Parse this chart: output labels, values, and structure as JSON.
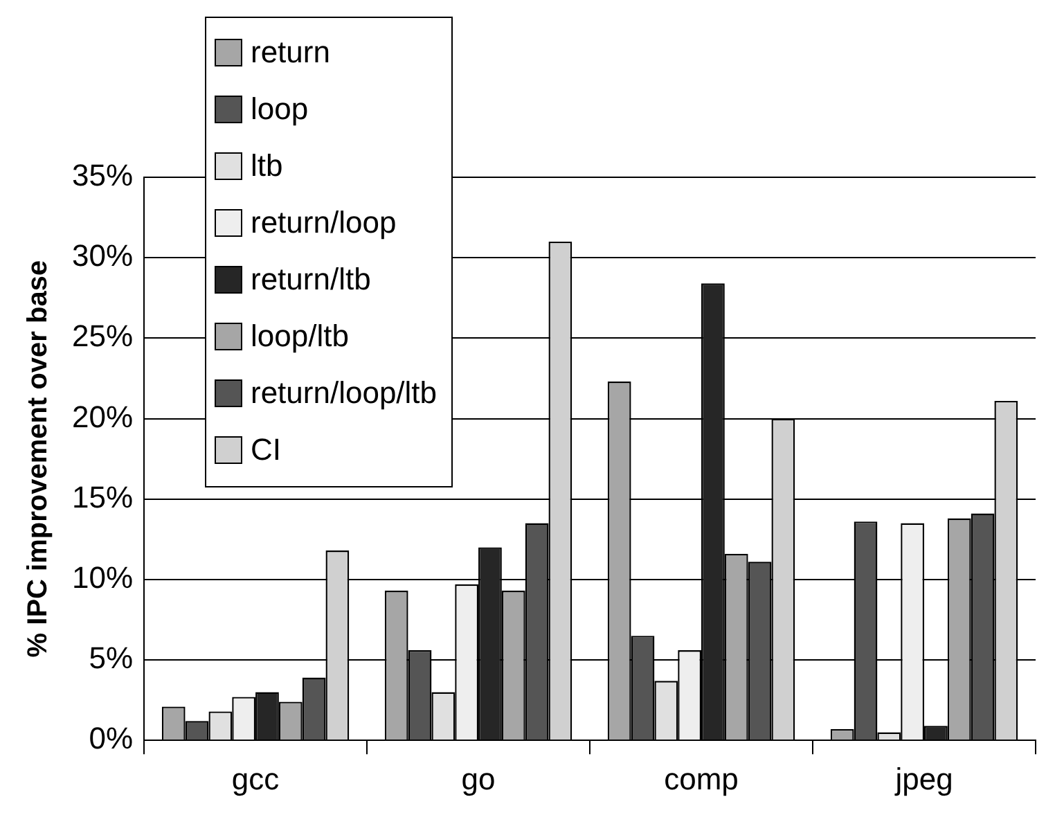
{
  "chart_data": {
    "type": "bar",
    "ylabel": "% IPC improvement over base",
    "categories": [
      "gcc",
      "go",
      "comp",
      "jpeg"
    ],
    "series": [
      {
        "name": "return",
        "color": "#a6a6a6",
        "values": [
          2.1,
          9.3,
          22.3,
          0.7
        ]
      },
      {
        "name": "loop",
        "color": "#555555",
        "values": [
          1.2,
          5.6,
          6.5,
          13.6
        ]
      },
      {
        "name": "ltb",
        "color": "#e0e0e0",
        "values": [
          1.8,
          3.0,
          3.7,
          0.5
        ]
      },
      {
        "name": "return/loop",
        "color": "#eeeeee",
        "values": [
          2.7,
          9.7,
          5.6,
          13.5
        ]
      },
      {
        "name": "return/ltb",
        "color": "#262626",
        "values": [
          3.0,
          12.0,
          28.4,
          0.9
        ]
      },
      {
        "name": "loop/ltb",
        "color": "#a6a6a6",
        "values": [
          2.4,
          9.3,
          11.6,
          13.8
        ]
      },
      {
        "name": "return/loop/ltb",
        "color": "#555555",
        "values": [
          3.9,
          13.5,
          11.1,
          14.1
        ]
      },
      {
        "name": "CI",
        "color": "#d0d0d0",
        "values": [
          11.8,
          31.0,
          20.0,
          21.1
        ]
      }
    ],
    "ylim": [
      0,
      35
    ],
    "yticks": [
      {
        "value": 0,
        "label": "0%"
      },
      {
        "value": 5,
        "label": "5%"
      },
      {
        "value": 10,
        "label": "10%"
      },
      {
        "value": 15,
        "label": "15%"
      },
      {
        "value": 20,
        "label": "20%"
      },
      {
        "value": 25,
        "label": "25%"
      },
      {
        "value": 30,
        "label": "30%"
      },
      {
        "value": 35,
        "label": "35%"
      }
    ],
    "grid": "y",
    "legend": "top left"
  }
}
